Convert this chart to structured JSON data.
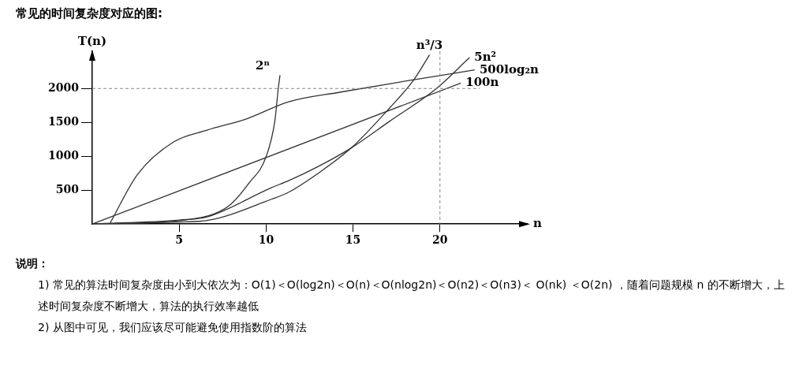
{
  "chart_data": {
    "type": "line",
    "title": "常见的时间复杂度对应的图:",
    "xlabel": "n",
    "ylabel": "T(n)",
    "xlim": [
      0,
      25
    ],
    "xticks": [
      5,
      10,
      15,
      20
    ],
    "ylim": [
      0,
      2550
    ],
    "yticks": [
      500,
      1000,
      1500,
      2000
    ],
    "grid": false,
    "legend": false,
    "marker": "none",
    "series": [
      {
        "name": "2ⁿ",
        "color": "#333333",
        "x": [
          0,
          5,
          7,
          8,
          9,
          10,
          10.5,
          10.7,
          10.8
        ],
        "values": [
          0,
          50,
          150,
          300,
          600,
          993,
          1516,
          2000,
          2196
        ]
      },
      {
        "name": "n³/3",
        "color": "#333333",
        "x": [
          0,
          5,
          6.6,
          10.3,
          11.3,
          13,
          14.9,
          17.1,
          18.5,
          19.4
        ],
        "values": [
          0,
          30,
          52,
          366,
          470,
          750,
          1124,
          1712,
          2130,
          2497
        ]
      },
      {
        "name": "5n²",
        "color": "#333333",
        "x": [
          0,
          5,
          6.6,
          10.3,
          11.3,
          13,
          14.9,
          17.1,
          19.8,
          21.7
        ],
        "values": [
          0,
          60,
          105,
          536,
          640,
          850,
          1124,
          1516,
          2000,
          2457
        ]
      },
      {
        "name": "500log₂n",
        "color": "#333333",
        "x": [
          1,
          2.6,
          4.7,
          6.6,
          8.9,
          11.3,
          14.3,
          18.5,
          22
        ],
        "values": [
          0,
          732,
          1215,
          1385,
          1555,
          1804,
          1948,
          2130,
          2274
        ]
      },
      {
        "name": "100n",
        "color": "#333333",
        "x": [
          0,
          21.2
        ],
        "values": [
          0,
          2080
        ]
      }
    ],
    "ref_lines": [
      {
        "axis": "y",
        "value": 2000,
        "color": "#888888",
        "line_style": "dashed"
      },
      {
        "axis": "x",
        "value": 20,
        "color": "#888888",
        "line_style": "dashed"
      }
    ],
    "annotations": [
      "说明：",
      "1) 常见的算法时间复杂度由小到大依次为：Ο(1)＜Ο(log2n)＜Ο(n)＜Ο(nlog2n)＜Ο(n2)＜Ο(n3)＜ Ο(nk) ＜Ο(2n) ，随着问题规模 n 的不断增大，上述时间复杂度不断增大，算法的执行效率越低",
      "2) 从图中可见，我们应该尽可能避免使用指数阶的算法"
    ]
  }
}
